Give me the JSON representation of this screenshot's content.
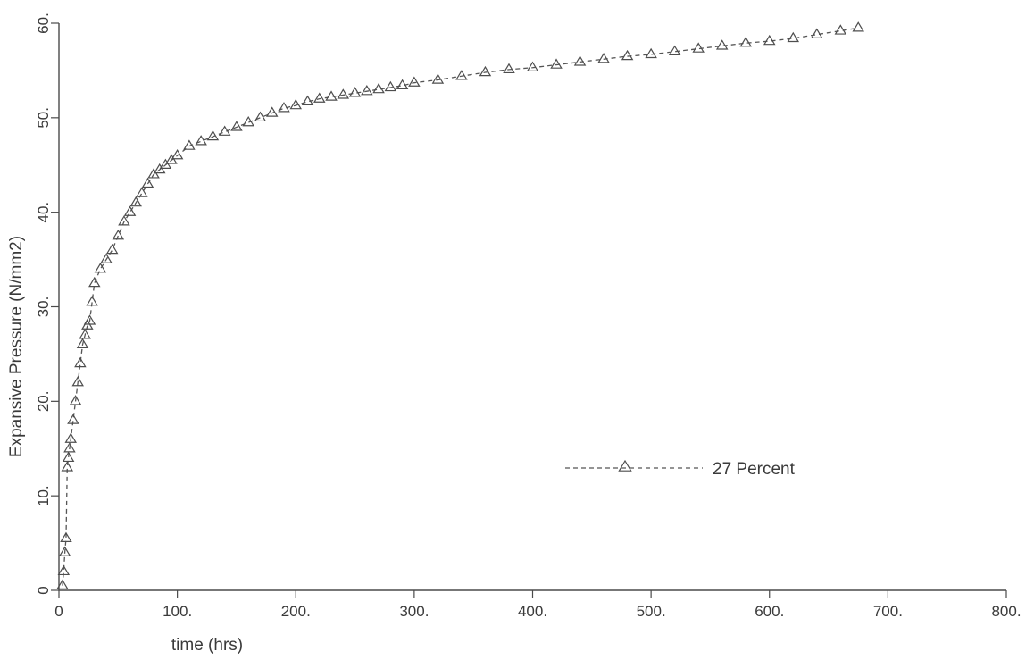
{
  "chart_data": {
    "type": "scatter",
    "xlabel": "time (hrs)",
    "ylabel": "Expansive Pressure (N/mm2)",
    "xlim": [
      0,
      800
    ],
    "ylim": [
      0,
      60
    ],
    "xticks": [
      "0",
      "100.",
      "200.",
      "300.",
      "400.",
      "500.",
      "600.",
      "700.",
      "800."
    ],
    "xtick_values": [
      0,
      100,
      200,
      300,
      400,
      500,
      600,
      700,
      800
    ],
    "yticks": [
      "0",
      "10.",
      "20.",
      "30.",
      "40.",
      "50.",
      "60."
    ],
    "ytick_values": [
      0,
      10,
      20,
      30,
      40,
      50,
      60
    ],
    "grid": false,
    "legend_position": "center-right",
    "series": [
      {
        "name": "27 Percent",
        "line_style": "dashed",
        "marker": "triangle",
        "color": "#4d4d4d",
        "x": [
          3,
          4,
          5,
          6,
          7,
          8,
          9,
          10,
          12,
          14,
          16,
          18,
          20,
          22,
          24,
          26,
          28,
          30,
          35,
          40,
          45,
          50,
          55,
          60,
          65,
          70,
          75,
          80,
          85,
          90,
          95,
          100,
          110,
          120,
          130,
          140,
          150,
          160,
          170,
          180,
          190,
          200,
          210,
          220,
          230,
          240,
          250,
          260,
          270,
          280,
          290,
          300,
          320,
          340,
          360,
          380,
          400,
          420,
          440,
          460,
          480,
          500,
          520,
          540,
          560,
          580,
          600,
          620,
          640,
          660,
          675
        ],
        "y": [
          0.5,
          2,
          4,
          5.5,
          13,
          14,
          15,
          16,
          18,
          20,
          22,
          24,
          26,
          27,
          28,
          28.5,
          30.5,
          32.5,
          34,
          35,
          36,
          37.5,
          39,
          40,
          41,
          42,
          43,
          44,
          44.5,
          45,
          45.5,
          46,
          47,
          47.5,
          48,
          48.5,
          49,
          49.5,
          50,
          50.5,
          51,
          51.3,
          51.7,
          52,
          52.2,
          52.4,
          52.6,
          52.8,
          53,
          53.2,
          53.4,
          53.7,
          54,
          54.4,
          54.8,
          55.1,
          55.3,
          55.6,
          55.9,
          56.2,
          56.5,
          56.7,
          57,
          57.3,
          57.6,
          57.9,
          58.1,
          58.4,
          58.8,
          59.2,
          59.5
        ]
      }
    ],
    "legend": {
      "label": "27 Percent"
    }
  }
}
